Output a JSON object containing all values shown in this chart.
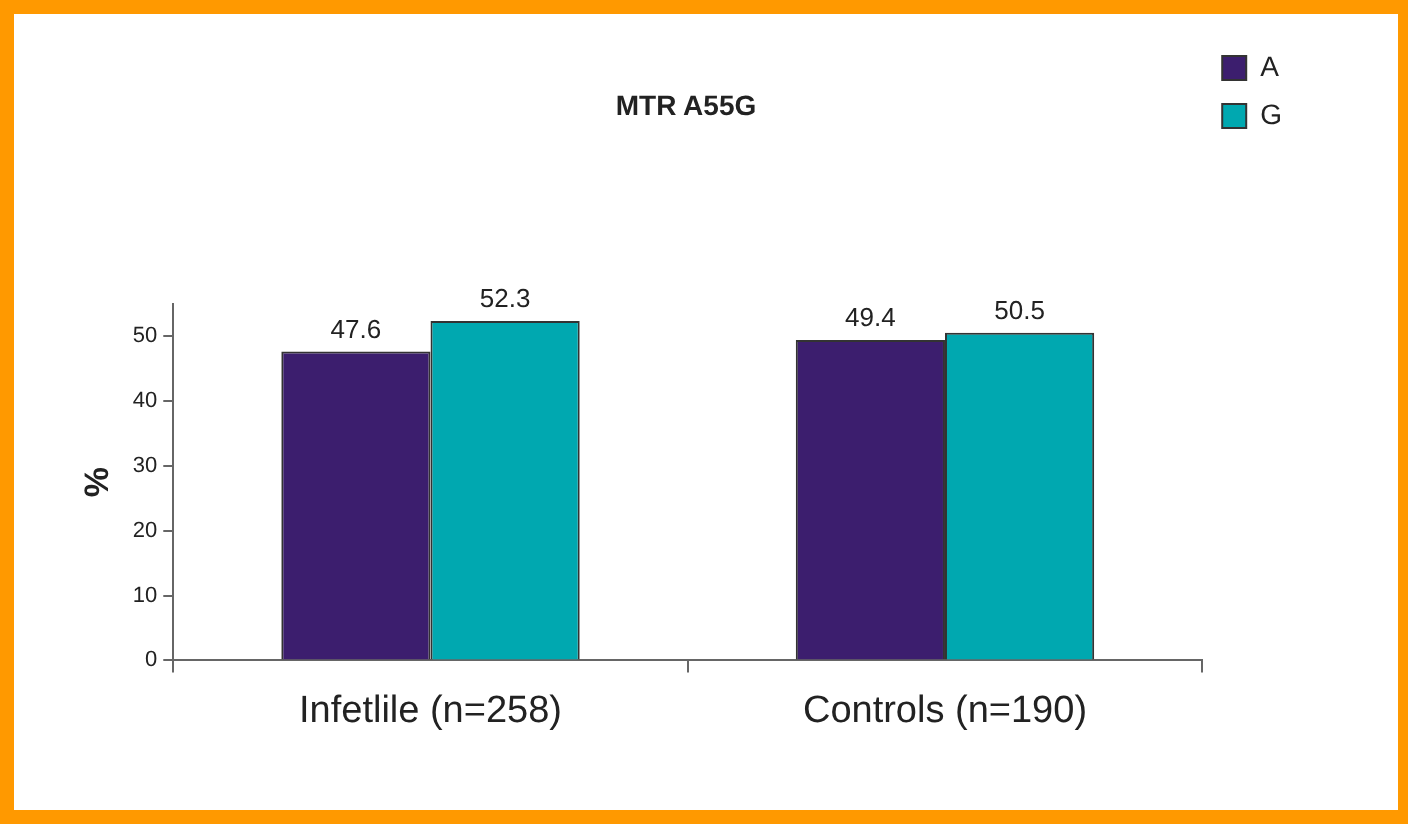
{
  "chart_data": {
    "type": "bar",
    "title": "MTR A55G",
    "ylabel": "%",
    "categories": [
      "Infetlile (n=258)",
      "Controls (n=190)"
    ],
    "series": [
      {
        "name": "A",
        "color": "#3c1e6e",
        "values": [
          47.6,
          49.4
        ]
      },
      {
        "name": "G",
        "color": "#00a8b0",
        "values": [
          52.3,
          50.5
        ]
      }
    ],
    "ylim": [
      0,
      55
    ],
    "yticks": [
      0,
      10,
      20,
      30,
      40,
      50
    ],
    "grid": false,
    "legend": "right",
    "data_labels": true
  }
}
